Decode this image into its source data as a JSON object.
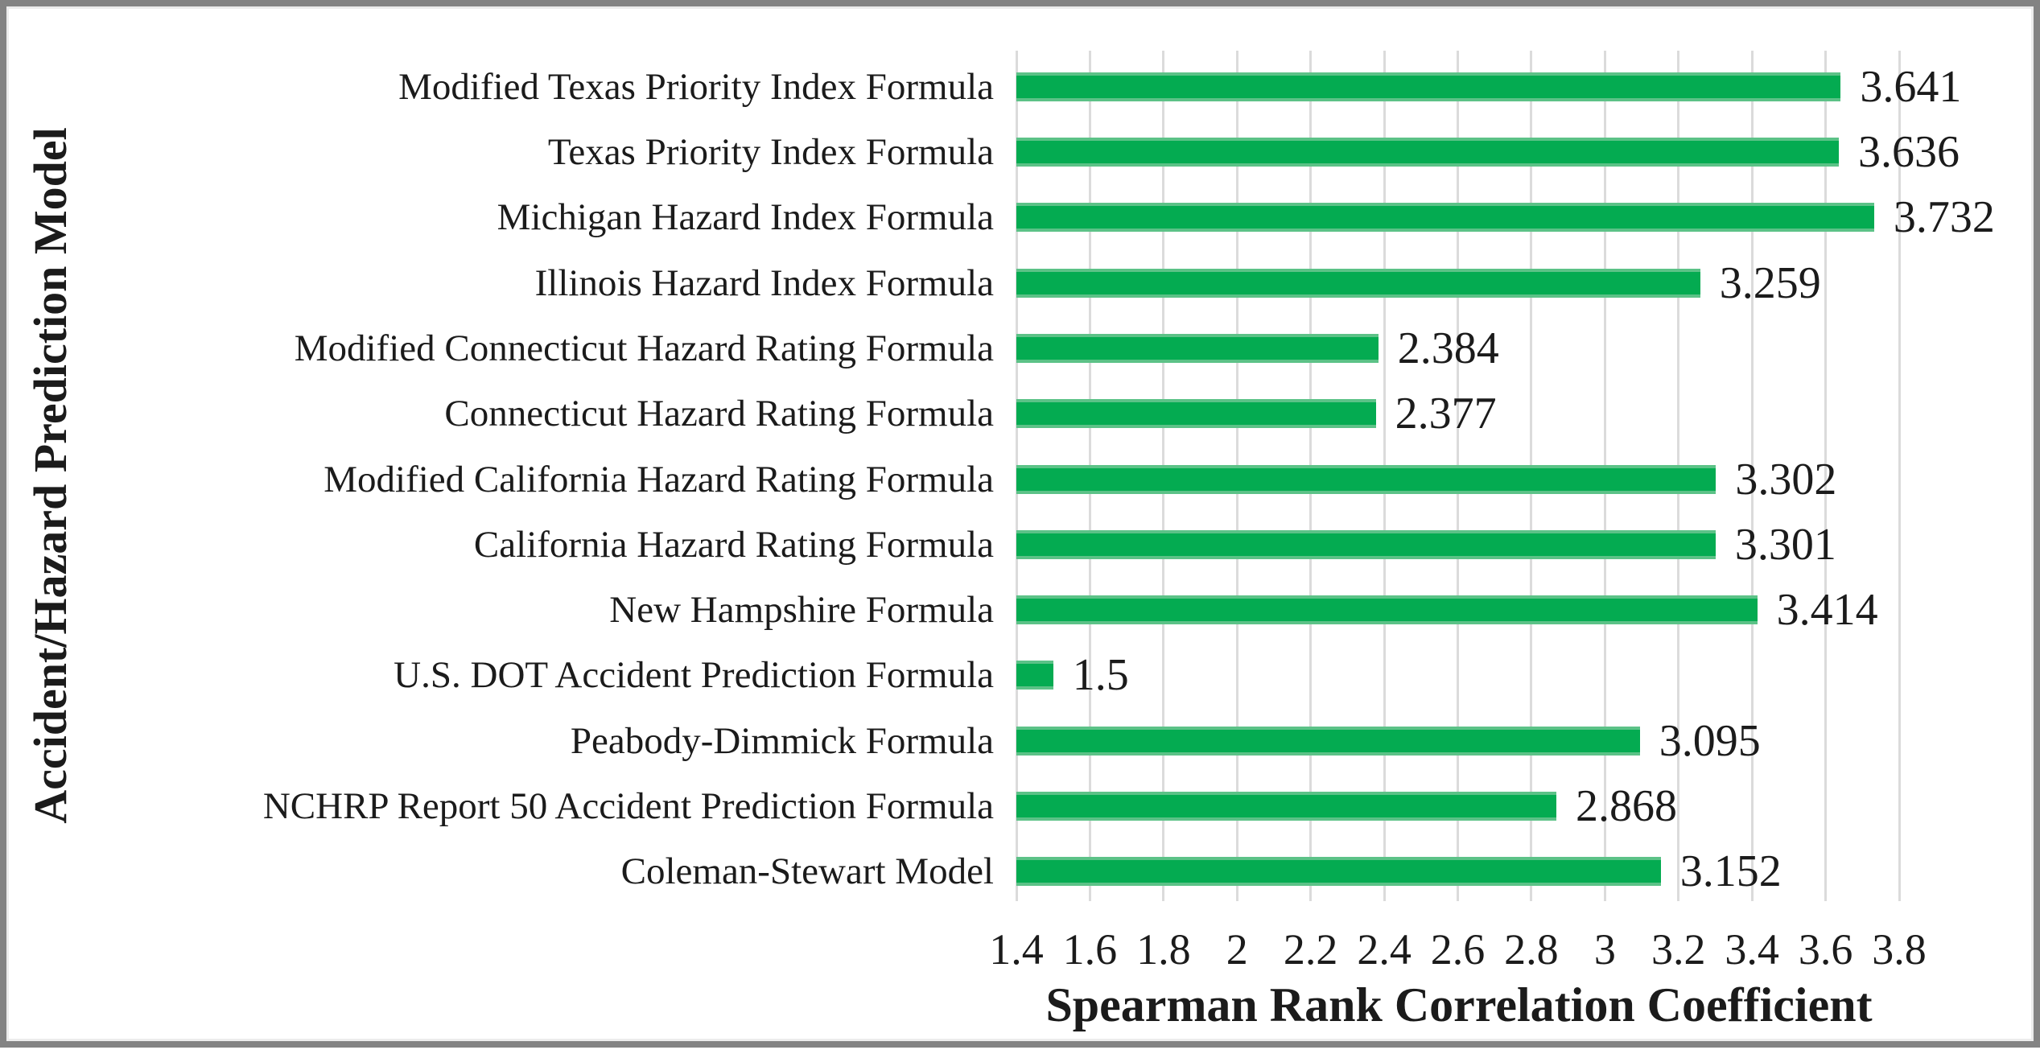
{
  "chart_data": {
    "type": "bar",
    "orientation": "horizontal",
    "title": "",
    "xlabel": "Spearman Rank Correlation Coefficient",
    "ylabel": "Accident/Hazard Prediction Model",
    "xlim": [
      1.4,
      3.8
    ],
    "tick_step": 0.2,
    "x_ticks": [
      "1.4",
      "1.6",
      "1.8",
      "2",
      "2.2",
      "2.4",
      "2.6",
      "2.8",
      "3",
      "3.2",
      "3.4",
      "3.6",
      "3.8"
    ],
    "grid": "vertical-only",
    "legend": "none",
    "categories": [
      "Modified Texas Priority Index Formula",
      "Texas Priority Index Formula",
      "Michigan Hazard Index Formula",
      "Illinois Hazard Index Formula",
      "Modified Connecticut Hazard Rating Formula",
      "Connecticut Hazard Rating Formula",
      "Modified California Hazard Rating Formula",
      "California Hazard Rating Formula",
      "New Hampshire Formula",
      "U.S. DOT Accident Prediction Formula",
      "Peabody-Dimmick Formula",
      "NCHRP Report 50 Accident Prediction Formula",
      "Coleman-Stewart Model"
    ],
    "values": [
      3.641,
      3.636,
      3.732,
      3.259,
      2.384,
      2.377,
      3.302,
      3.301,
      3.414,
      1.5,
      3.095,
      2.868,
      3.152
    ],
    "value_labels": [
      "3.641",
      "3.636",
      "3.732",
      "3.259",
      "2.384",
      "2.377",
      "3.302",
      "3.301",
      "3.414",
      "1.5",
      "3.095",
      "2.868",
      "3.152"
    ],
    "colors": {
      "bar_fill": "#04AB51",
      "bar_edge": "#5CC287",
      "gridline": "#DBDBDB",
      "text": "#1b1b1b",
      "frame_border": "#838383",
      "background": "#FFFFFF"
    }
  }
}
